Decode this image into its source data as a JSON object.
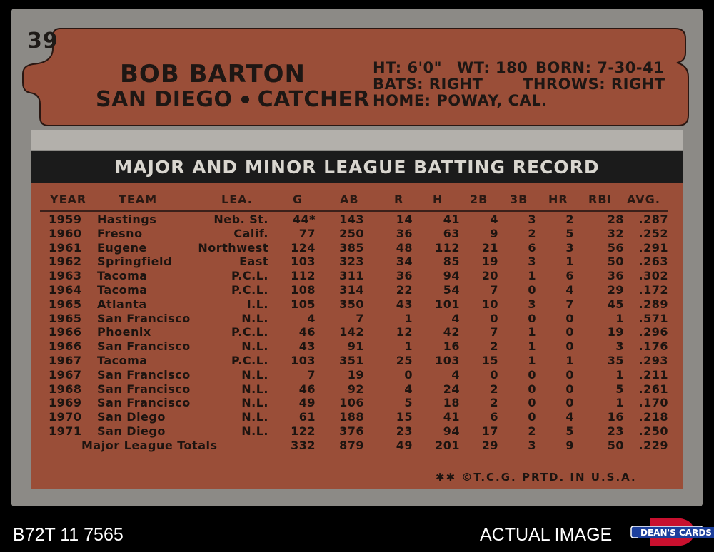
{
  "card": {
    "number": "39",
    "player_name": "BOB BARTON",
    "team": "SAN DIEGO",
    "position": "CATCHER",
    "bio": {
      "height": "HT: 6'0\"",
      "weight": "WT: 180",
      "born": "BORN: 7-30-41",
      "bats": "BATS: RIGHT",
      "throws": "THROWS: RIGHT",
      "home": "HOME: POWAY, CAL."
    },
    "table_title": "MAJOR AND MINOR LEAGUE BATTING RECORD",
    "columns": [
      "YEAR",
      "TEAM",
      "LEA.",
      "G",
      "AB",
      "R",
      "H",
      "2B",
      "3B",
      "HR",
      "RBI",
      "AVG."
    ],
    "rows": [
      {
        "year": "1959",
        "team": "Hastings",
        "league": "Neb. St.",
        "g": "44*",
        "ab": "143",
        "r": "14",
        "h": "41",
        "2b": "4",
        "3b": "3",
        "hr": "2",
        "rbi": "28",
        "avg": ".287"
      },
      {
        "year": "1960",
        "team": "Fresno",
        "league": "Calif.",
        "g": "77",
        "ab": "250",
        "r": "36",
        "h": "63",
        "2b": "9",
        "3b": "2",
        "hr": "5",
        "rbi": "32",
        "avg": ".252"
      },
      {
        "year": "1961",
        "team": "Eugene",
        "league": "Northwest",
        "g": "124",
        "ab": "385",
        "r": "48",
        "h": "112",
        "2b": "21",
        "3b": "6",
        "hr": "3",
        "rbi": "56",
        "avg": ".291"
      },
      {
        "year": "1962",
        "team": "Springfield",
        "league": "East",
        "g": "103",
        "ab": "323",
        "r": "34",
        "h": "85",
        "2b": "19",
        "3b": "3",
        "hr": "1",
        "rbi": "50",
        "avg": ".263"
      },
      {
        "year": "1963",
        "team": "Tacoma",
        "league": "P.C.L.",
        "g": "112",
        "ab": "311",
        "r": "36",
        "h": "94",
        "2b": "20",
        "3b": "1",
        "hr": "6",
        "rbi": "36",
        "avg": ".302"
      },
      {
        "year": "1964",
        "team": "Tacoma",
        "league": "P.C.L.",
        "g": "108",
        "ab": "314",
        "r": "22",
        "h": "54",
        "2b": "7",
        "3b": "0",
        "hr": "4",
        "rbi": "29",
        "avg": ".172"
      },
      {
        "year": "1965",
        "team": "Atlanta",
        "league": "I.L.",
        "g": "105",
        "ab": "350",
        "r": "43",
        "h": "101",
        "2b": "10",
        "3b": "3",
        "hr": "7",
        "rbi": "45",
        "avg": ".289"
      },
      {
        "year": "1965",
        "team": "San Francisco",
        "league": "N.L.",
        "g": "4",
        "ab": "7",
        "r": "1",
        "h": "4",
        "2b": "0",
        "3b": "0",
        "hr": "0",
        "rbi": "1",
        "avg": ".571"
      },
      {
        "year": "1966",
        "team": "Phoenix",
        "league": "P.C.L.",
        "g": "46",
        "ab": "142",
        "r": "12",
        "h": "42",
        "2b": "7",
        "3b": "1",
        "hr": "0",
        "rbi": "19",
        "avg": ".296"
      },
      {
        "year": "1966",
        "team": "San Francisco",
        "league": "N.L.",
        "g": "43",
        "ab": "91",
        "r": "1",
        "h": "16",
        "2b": "2",
        "3b": "1",
        "hr": "0",
        "rbi": "3",
        "avg": ".176"
      },
      {
        "year": "1967",
        "team": "Tacoma",
        "league": "P.C.L.",
        "g": "103",
        "ab": "351",
        "r": "25",
        "h": "103",
        "2b": "15",
        "3b": "1",
        "hr": "1",
        "rbi": "35",
        "avg": ".293"
      },
      {
        "year": "1967",
        "team": "San Francisco",
        "league": "N.L.",
        "g": "7",
        "ab": "19",
        "r": "0",
        "h": "4",
        "2b": "0",
        "3b": "0",
        "hr": "0",
        "rbi": "1",
        "avg": ".211"
      },
      {
        "year": "1968",
        "team": "San Francisco",
        "league": "N.L.",
        "g": "46",
        "ab": "92",
        "r": "4",
        "h": "24",
        "2b": "2",
        "3b": "0",
        "hr": "0",
        "rbi": "5",
        "avg": ".261"
      },
      {
        "year": "1969",
        "team": "San Francisco",
        "league": "N.L.",
        "g": "49",
        "ab": "106",
        "r": "5",
        "h": "18",
        "2b": "2",
        "3b": "0",
        "hr": "0",
        "rbi": "1",
        "avg": ".170"
      },
      {
        "year": "1970",
        "team": "San Diego",
        "league": "N.L.",
        "g": "61",
        "ab": "188",
        "r": "15",
        "h": "41",
        "2b": "6",
        "3b": "0",
        "hr": "4",
        "rbi": "16",
        "avg": ".218"
      },
      {
        "year": "1971",
        "team": "San Diego",
        "league": "N.L.",
        "g": "122",
        "ab": "376",
        "r": "23",
        "h": "94",
        "2b": "17",
        "3b": "2",
        "hr": "5",
        "rbi": "23",
        "avg": ".250"
      }
    ],
    "totals": {
      "label": "Major League Totals",
      "g": "332",
      "ab": "879",
      "r": "49",
      "h": "201",
      "2b": "29",
      "3b": "3",
      "hr": "9",
      "rbi": "50",
      "avg": ".229"
    },
    "copyright": "✱✱ ©T.C.G. PRTD. IN U.S.A."
  },
  "footer": {
    "id": "B72T 11 7565",
    "label": "ACTUAL IMAGE",
    "logo_text": "DEAN'S CARDS"
  },
  "colors": {
    "card_gray": "#8c8a86",
    "brick": "#9a4e38",
    "dark": "#1b1b1b"
  }
}
